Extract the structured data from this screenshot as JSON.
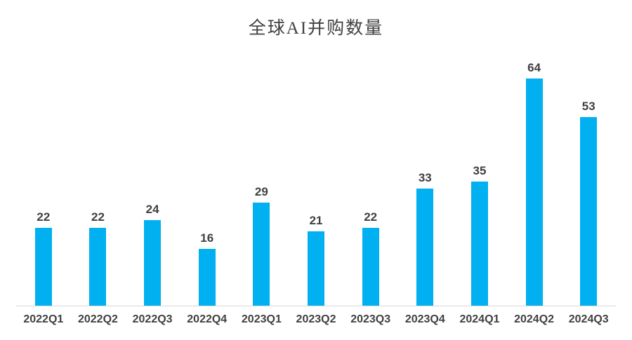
{
  "chart_data": {
    "type": "bar",
    "title": "全球AI并购数量",
    "categories": [
      "2022Q1",
      "2022Q2",
      "2022Q3",
      "2022Q4",
      "2023Q1",
      "2023Q2",
      "2023Q3",
      "2023Q4",
      "2024Q1",
      "2024Q2",
      "2024Q3"
    ],
    "values": [
      22,
      22,
      24,
      16,
      29,
      21,
      22,
      33,
      35,
      64,
      53
    ],
    "xlabel": "",
    "ylabel": "",
    "ylim": [
      0,
      75
    ],
    "grid": false,
    "legend_position": "none",
    "y_axis_visible": false,
    "data_labels": "above-bars",
    "colors": {
      "bar": "#00B0F0",
      "title": "#404040",
      "data_label": "#404040",
      "x_tick_label": "#404040",
      "axis_line": "#D9D9D9",
      "background": "#FFFFFF"
    }
  }
}
